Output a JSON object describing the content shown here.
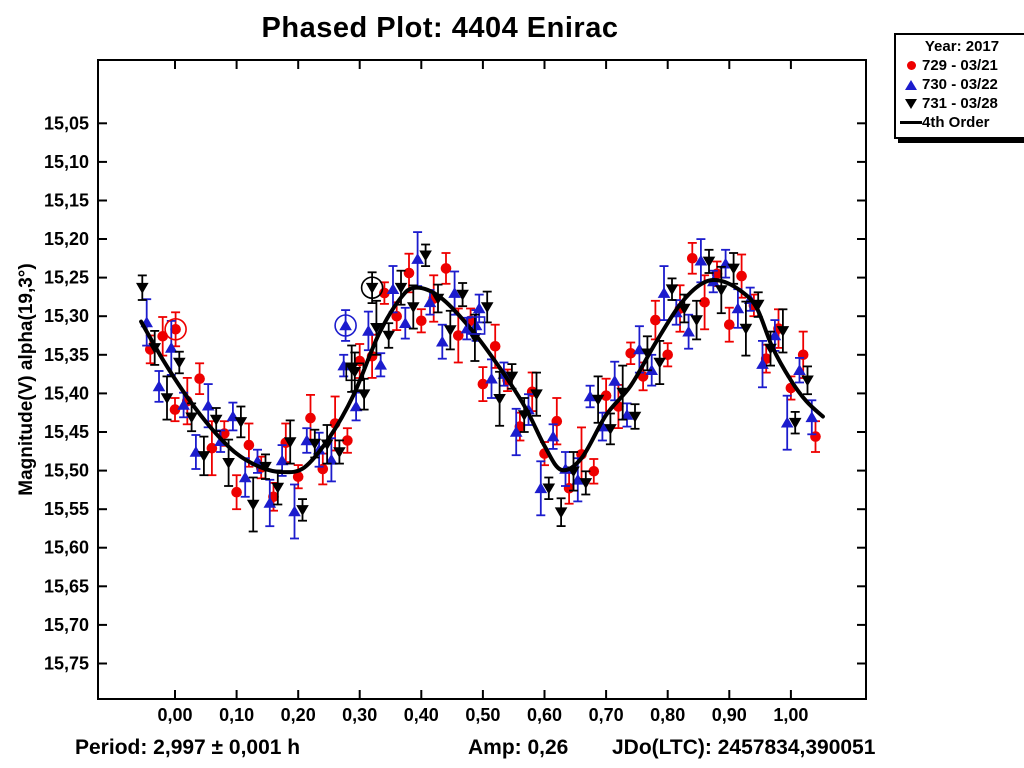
{
  "title": "Phased Plot: 4404 Enirac",
  "legend": {
    "header": "Year: 2017",
    "entries": [
      {
        "label": "729 - 03/21",
        "marker": "circle",
        "color": "#ee0000"
      },
      {
        "label": "730 - 03/22",
        "marker": "triangle-up",
        "color": "#1c1ccd"
      },
      {
        "label": "731 - 03/28",
        "marker": "triangle-down",
        "color": "#000000"
      },
      {
        "label": "4th Order",
        "marker": "line",
        "color": "#000000"
      }
    ]
  },
  "footer": {
    "period_label": "Period: 2,997 ± 0,001 h",
    "amp_label": "Amp: 0,26",
    "jdo_label": "JDo(LTC): 2457834,390051"
  },
  "chart_data": {
    "type": "scatter",
    "title": "Phased Plot: 4404 Enirac",
    "ylabel": "Magnitude(V) alpha(19,3°)",
    "xlabel": "",
    "grid": false,
    "legend_position": "top-right",
    "axes": {
      "x": {
        "min": -0.125,
        "max": 1.122,
        "ticks": [
          0.0,
          0.1,
          0.2,
          0.3,
          0.4,
          0.5,
          0.6,
          0.7,
          0.8,
          0.9,
          1.0
        ],
        "tick_labels": [
          "0,00",
          "0,10",
          "0,20",
          "0,30",
          "0,40",
          "0,50",
          "0,60",
          "0,70",
          "0,80",
          "0,90",
          "1,00"
        ]
      },
      "y": {
        "min": 14.968,
        "max": 15.796,
        "inverted": true,
        "ticks": [
          15.05,
          15.1,
          15.15,
          15.2,
          15.25,
          15.3,
          15.35,
          15.4,
          15.45,
          15.5,
          15.55,
          15.6,
          15.65,
          15.7,
          15.75
        ],
        "tick_labels": [
          "15,05",
          "15,10",
          "15,15",
          "15,20",
          "15,25",
          "15,30",
          "15,35",
          "15,40",
          "15,45",
          "15,50",
          "15,55",
          "15,60",
          "15,65",
          "15,70",
          "15,75"
        ]
      }
    },
    "series": [
      {
        "name": "729 - 03/21",
        "marker": "circle",
        "color": "#ee0000",
        "points": [
          [
            -0.04,
            15.343,
            0.018
          ],
          [
            -0.02,
            15.326,
            0.025
          ],
          [
            0.0,
            15.421,
            0.015
          ],
          [
            0.001,
            15.317,
            0.022
          ],
          [
            0.02,
            15.41,
            0.03
          ],
          [
            0.04,
            15.381,
            0.02
          ],
          [
            0.06,
            15.471,
            0.035
          ],
          [
            0.08,
            15.452,
            0.016
          ],
          [
            0.1,
            15.528,
            0.022
          ],
          [
            0.12,
            15.467,
            0.028
          ],
          [
            0.14,
            15.496,
            0.014
          ],
          [
            0.16,
            15.534,
            0.018
          ],
          [
            0.18,
            15.464,
            0.025
          ],
          [
            0.2,
            15.508,
            0.015
          ],
          [
            0.22,
            15.432,
            0.03
          ],
          [
            0.24,
            15.498,
            0.02
          ],
          [
            0.26,
            15.439,
            0.035
          ],
          [
            0.28,
            15.461,
            0.016
          ],
          [
            0.3,
            15.358,
            0.022
          ],
          [
            0.32,
            15.352,
            0.028
          ],
          [
            0.34,
            15.27,
            0.014
          ],
          [
            0.36,
            15.3,
            0.018
          ],
          [
            0.38,
            15.244,
            0.025
          ],
          [
            0.4,
            15.306,
            0.015
          ],
          [
            0.42,
            15.277,
            0.03
          ],
          [
            0.44,
            15.238,
            0.02
          ],
          [
            0.46,
            15.325,
            0.035
          ],
          [
            0.48,
            15.306,
            0.016
          ],
          [
            0.5,
            15.388,
            0.022
          ],
          [
            0.52,
            15.339,
            0.028
          ],
          [
            0.54,
            15.383,
            0.014
          ],
          [
            0.56,
            15.443,
            0.018
          ],
          [
            0.58,
            15.398,
            0.025
          ],
          [
            0.6,
            15.478,
            0.015
          ],
          [
            0.62,
            15.436,
            0.03
          ],
          [
            0.64,
            15.523,
            0.02
          ],
          [
            0.66,
            15.479,
            0.035
          ],
          [
            0.68,
            15.501,
            0.016
          ],
          [
            0.7,
            15.403,
            0.022
          ],
          [
            0.72,
            15.417,
            0.028
          ],
          [
            0.74,
            15.348,
            0.014
          ],
          [
            0.76,
            15.378,
            0.018
          ],
          [
            0.78,
            15.305,
            0.025
          ],
          [
            0.8,
            15.35,
            0.015
          ],
          [
            0.82,
            15.29,
            0.03
          ],
          [
            0.84,
            15.225,
            0.02
          ],
          [
            0.86,
            15.282,
            0.035
          ],
          [
            0.88,
            15.245,
            0.016
          ],
          [
            0.9,
            15.311,
            0.022
          ],
          [
            0.92,
            15.248,
            0.028
          ],
          [
            0.94,
            15.286,
            0.014
          ],
          [
            0.96,
            15.355,
            0.018
          ],
          [
            0.98,
            15.316,
            0.025
          ],
          [
            1.0,
            15.393,
            0.015
          ],
          [
            1.02,
            15.35,
            0.03
          ],
          [
            1.04,
            15.456,
            0.02
          ]
        ]
      },
      {
        "name": "730 - 03/22",
        "marker": "triangle-up",
        "color": "#1c1ccd",
        "points": [
          [
            -0.046,
            15.308,
            0.03
          ],
          [
            -0.026,
            15.391,
            0.02
          ],
          [
            -0.006,
            15.341,
            0.035
          ],
          [
            0.014,
            15.415,
            0.016
          ],
          [
            0.034,
            15.476,
            0.022
          ],
          [
            0.054,
            15.416,
            0.028
          ],
          [
            0.074,
            15.462,
            0.014
          ],
          [
            0.094,
            15.43,
            0.018
          ],
          [
            0.114,
            15.509,
            0.025
          ],
          [
            0.134,
            15.488,
            0.015
          ],
          [
            0.154,
            15.542,
            0.03
          ],
          [
            0.174,
            15.487,
            0.02
          ],
          [
            0.194,
            15.553,
            0.035
          ],
          [
            0.214,
            15.461,
            0.016
          ],
          [
            0.234,
            15.473,
            0.022
          ],
          [
            0.254,
            15.486,
            0.028
          ],
          [
            0.274,
            15.364,
            0.014
          ],
          [
            0.277,
            15.312,
            0.02
          ],
          [
            0.294,
            15.417,
            0.018
          ],
          [
            0.314,
            15.319,
            0.025
          ],
          [
            0.334,
            15.363,
            0.015
          ],
          [
            0.354,
            15.265,
            0.03
          ],
          [
            0.374,
            15.309,
            0.02
          ],
          [
            0.394,
            15.226,
            0.035
          ],
          [
            0.414,
            15.282,
            0.016
          ],
          [
            0.434,
            15.333,
            0.022
          ],
          [
            0.454,
            15.27,
            0.028
          ],
          [
            0.474,
            15.316,
            0.014
          ],
          [
            0.489,
            15.312,
            0.02
          ],
          [
            0.494,
            15.29,
            0.018
          ],
          [
            0.514,
            15.381,
            0.025
          ],
          [
            0.534,
            15.375,
            0.015
          ],
          [
            0.554,
            15.45,
            0.03
          ],
          [
            0.574,
            15.421,
            0.02
          ],
          [
            0.594,
            15.523,
            0.035
          ],
          [
            0.614,
            15.456,
            0.016
          ],
          [
            0.634,
            15.498,
            0.022
          ],
          [
            0.654,
            15.512,
            0.028
          ],
          [
            0.674,
            15.404,
            0.014
          ],
          [
            0.694,
            15.443,
            0.018
          ],
          [
            0.714,
            15.384,
            0.025
          ],
          [
            0.734,
            15.428,
            0.015
          ],
          [
            0.754,
            15.343,
            0.03
          ],
          [
            0.774,
            15.37,
            0.02
          ],
          [
            0.794,
            15.27,
            0.035
          ],
          [
            0.814,
            15.295,
            0.016
          ],
          [
            0.834,
            15.32,
            0.022
          ],
          [
            0.854,
            15.228,
            0.028
          ],
          [
            0.874,
            15.255,
            0.014
          ],
          [
            0.894,
            15.232,
            0.018
          ],
          [
            0.914,
            15.29,
            0.025
          ],
          [
            0.934,
            15.278,
            0.015
          ],
          [
            0.954,
            15.362,
            0.03
          ],
          [
            0.974,
            15.325,
            0.02
          ],
          [
            0.994,
            15.438,
            0.035
          ],
          [
            1.014,
            15.37,
            0.016
          ],
          [
            1.034,
            15.431,
            0.022
          ]
        ]
      },
      {
        "name": "731 - 03/28",
        "marker": "triangle-down",
        "color": "#000000",
        "points": [
          [
            -0.053,
            15.263,
            0.016
          ],
          [
            -0.033,
            15.341,
            0.022
          ],
          [
            -0.013,
            15.406,
            0.028
          ],
          [
            0.007,
            15.36,
            0.014
          ],
          [
            0.027,
            15.431,
            0.018
          ],
          [
            0.047,
            15.481,
            0.025
          ],
          [
            0.067,
            15.434,
            0.015
          ],
          [
            0.087,
            15.49,
            0.03
          ],
          [
            0.107,
            15.437,
            0.02
          ],
          [
            0.127,
            15.544,
            0.035
          ],
          [
            0.147,
            15.495,
            0.016
          ],
          [
            0.167,
            15.522,
            0.022
          ],
          [
            0.187,
            15.463,
            0.028
          ],
          [
            0.207,
            15.551,
            0.014
          ],
          [
            0.227,
            15.465,
            0.018
          ],
          [
            0.247,
            15.466,
            0.025
          ],
          [
            0.267,
            15.476,
            0.015
          ],
          [
            0.287,
            15.368,
            0.03
          ],
          [
            0.292,
            15.372,
            0.025
          ],
          [
            0.307,
            15.401,
            0.02
          ],
          [
            0.32,
            15.263,
            0.02
          ],
          [
            0.327,
            15.315,
            0.035
          ],
          [
            0.347,
            15.325,
            0.016
          ],
          [
            0.367,
            15.263,
            0.022
          ],
          [
            0.387,
            15.288,
            0.028
          ],
          [
            0.407,
            15.221,
            0.014
          ],
          [
            0.427,
            15.277,
            0.018
          ],
          [
            0.447,
            15.318,
            0.025
          ],
          [
            0.467,
            15.272,
            0.015
          ],
          [
            0.487,
            15.328,
            0.03
          ],
          [
            0.507,
            15.288,
            0.02
          ],
          [
            0.527,
            15.407,
            0.035
          ],
          [
            0.547,
            15.378,
            0.016
          ],
          [
            0.567,
            15.428,
            0.022
          ],
          [
            0.587,
            15.401,
            0.028
          ],
          [
            0.607,
            15.523,
            0.014
          ],
          [
            0.627,
            15.554,
            0.018
          ],
          [
            0.647,
            15.501,
            0.025
          ],
          [
            0.667,
            15.516,
            0.015
          ],
          [
            0.687,
            15.408,
            0.03
          ],
          [
            0.707,
            15.446,
            0.02
          ],
          [
            0.727,
            15.399,
            0.035
          ],
          [
            0.747,
            15.43,
            0.016
          ],
          [
            0.767,
            15.348,
            0.022
          ],
          [
            0.787,
            15.36,
            0.028
          ],
          [
            0.807,
            15.265,
            0.014
          ],
          [
            0.827,
            15.29,
            0.018
          ],
          [
            0.847,
            15.305,
            0.025
          ],
          [
            0.867,
            15.229,
            0.015
          ],
          [
            0.887,
            15.266,
            0.03
          ],
          [
            0.907,
            15.238,
            0.02
          ],
          [
            0.927,
            15.316,
            0.035
          ],
          [
            0.947,
            15.285,
            0.016
          ],
          [
            0.967,
            15.342,
            0.022
          ],
          [
            0.987,
            15.319,
            0.028
          ],
          [
            1.007,
            15.438,
            0.014
          ],
          [
            1.027,
            15.383,
            0.018
          ]
        ]
      }
    ],
    "fit_curve": {
      "name": "4th Order",
      "color": "#000000",
      "points": [
        [
          -0.055,
          15.307
        ],
        [
          -0.02,
          15.356
        ],
        [
          0.02,
          15.405
        ],
        [
          0.06,
          15.446
        ],
        [
          0.1,
          15.478
        ],
        [
          0.14,
          15.496
        ],
        [
          0.175,
          15.502
        ],
        [
          0.21,
          15.496
        ],
        [
          0.25,
          15.458
        ],
        [
          0.29,
          15.402
        ],
        [
          0.33,
          15.325
        ],
        [
          0.365,
          15.278
        ],
        [
          0.39,
          15.263
        ],
        [
          0.43,
          15.275
        ],
        [
          0.48,
          15.316
        ],
        [
          0.53,
          15.37
        ],
        [
          0.57,
          15.42
        ],
        [
          0.6,
          15.468
        ],
        [
          0.627,
          15.499
        ],
        [
          0.66,
          15.484
        ],
        [
          0.7,
          15.428
        ],
        [
          0.74,
          15.39
        ],
        [
          0.78,
          15.335
        ],
        [
          0.82,
          15.285
        ],
        [
          0.855,
          15.258
        ],
        [
          0.885,
          15.254
        ],
        [
          0.92,
          15.268
        ],
        [
          0.945,
          15.29
        ],
        [
          0.97,
          15.34
        ],
        [
          1.0,
          15.383
        ],
        [
          1.025,
          15.41
        ],
        [
          1.052,
          15.43
        ]
      ]
    },
    "highlight_markers": [
      {
        "shape": "circle",
        "color": "#ee0000",
        "phase": 0.001,
        "mag": 15.317
      },
      {
        "shape": "circle",
        "color": "#1c1ccd",
        "phase": 0.277,
        "mag": 15.312
      },
      {
        "shape": "circle",
        "color": "#000000",
        "phase": 0.32,
        "mag": 15.263
      },
      {
        "shape": "square",
        "color": "#000000",
        "phase": 0.292,
        "mag": 15.372
      },
      {
        "shape": "square",
        "color": "#1c1ccd",
        "phase": 0.489,
        "mag": 15.312
      }
    ]
  }
}
